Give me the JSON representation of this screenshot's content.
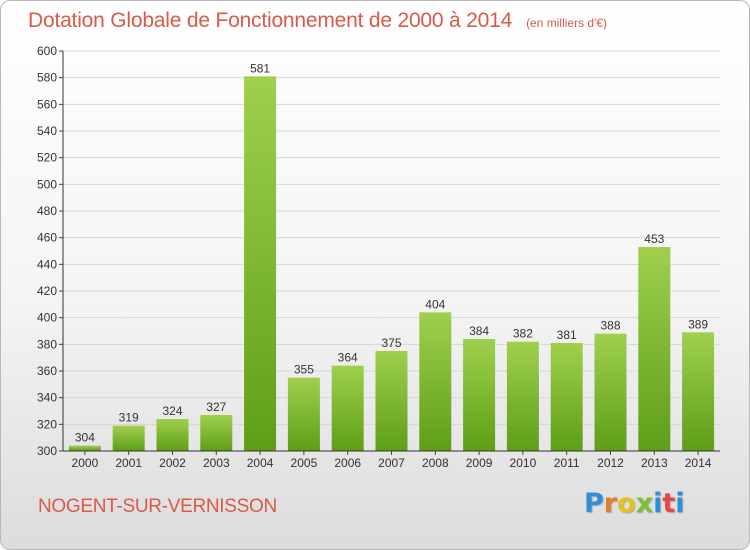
{
  "header": {
    "title": "Dotation Globale de Fonctionnement de 2000 à 2014",
    "unit": "(en milliers d'€)"
  },
  "footer": {
    "town": "NOGENT-SUR-VERNISSON",
    "brand": "Proxiti"
  },
  "colors": {
    "title": "#d85a4a",
    "bar_light": "#9fd04e",
    "bar_dark": "#5e9e17",
    "logo": [
      "#2f8ed8",
      "#e07d2a",
      "#e8c21c",
      "#7bbf33",
      "#2f8ed8",
      "#e54646",
      "#2f8ed8"
    ]
  },
  "chart_data": {
    "type": "bar",
    "title": "Dotation Globale de Fonctionnement de 2000 à 2014",
    "categories": [
      "2000",
      "2001",
      "2002",
      "2003",
      "2004",
      "2005",
      "2006",
      "2007",
      "2008",
      "2009",
      "2010",
      "2011",
      "2012",
      "2013",
      "2014"
    ],
    "values": [
      304,
      319,
      324,
      327,
      581,
      355,
      364,
      375,
      404,
      384,
      382,
      381,
      388,
      453,
      389
    ],
    "ylim": [
      300,
      600
    ],
    "yticks": [
      300,
      320,
      340,
      360,
      380,
      400,
      420,
      440,
      460,
      480,
      500,
      520,
      540,
      560,
      580,
      600
    ],
    "grid": true,
    "xlabel": "",
    "ylabel": ""
  }
}
